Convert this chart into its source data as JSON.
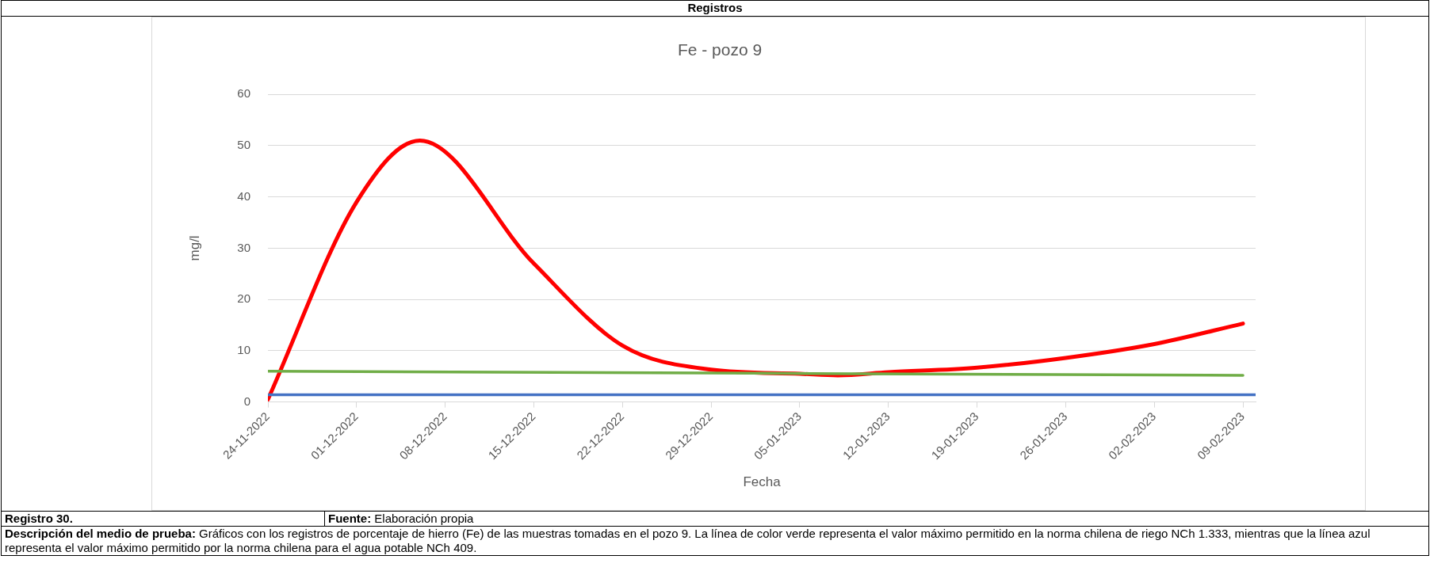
{
  "chart_data": {
    "type": "line",
    "title": "Fe - pozo 9",
    "xlabel": "Fecha",
    "ylabel": "mg/l",
    "series": [
      {
        "color": "#ff0000",
        "x": [
          "2022-11-24",
          "2022-12-01",
          "2022-12-06",
          "2022-12-15",
          "2022-12-22",
          "2022-12-29",
          "2023-01-05",
          "2023-01-08",
          "2023-01-12",
          "2023-01-19",
          "2023-01-26",
          "2023-02-02",
          "2023-02-09"
        ],
        "values": [
          0.5,
          39,
          51,
          27,
          11,
          6.3,
          5.5,
          5.2,
          5.8,
          6.7,
          8.6,
          11.3,
          15.3
        ]
      },
      {
        "color": "#70ad47",
        "x": [
          "2022-11-24",
          "2023-02-09"
        ],
        "values": [
          6,
          5.2
        ]
      },
      {
        "color": "#4472c4",
        "x": [
          "2022-11-24",
          "2023-02-10"
        ],
        "values": [
          1.4,
          1.4
        ]
      }
    ],
    "xlim": [
      "2022-11-24",
      "2023-02-10"
    ],
    "xticks": [
      {
        "value": "2022-11-24",
        "label": "24-11-2022"
      },
      {
        "value": "2022-12-01",
        "label": "01-12-2022"
      },
      {
        "value": "2022-12-08",
        "label": "08-12-2022"
      },
      {
        "value": "2022-12-15",
        "label": "15-12-2022"
      },
      {
        "value": "2022-12-22",
        "label": "22-12-2022"
      },
      {
        "value": "2022-12-29",
        "label": "29-12-2022"
      },
      {
        "value": "2023-01-05",
        "label": "05-01-2023"
      },
      {
        "value": "2023-01-12",
        "label": "12-01-2023"
      },
      {
        "value": "2023-01-19",
        "label": "19-01-2023"
      },
      {
        "value": "2023-01-26",
        "label": "26-01-2023"
      },
      {
        "value": "2023-02-02",
        "label": "02-02-2023"
      },
      {
        "value": "2023-02-09",
        "label": "09-02-2023"
      }
    ],
    "ylim": [
      0,
      60
    ],
    "yticks": [
      0,
      10,
      20,
      30,
      40,
      50,
      60
    ],
    "grid": "y",
    "legend": false,
    "marker": "none",
    "line_style": "solid",
    "annotations": [
      "Registros",
      "Registro 30.",
      "Fuente: Elaboración propia",
      "Descripción del medio de prueba: Gráficos con los registros de porcentaje de hierro (Fe) de las muestras tomadas en el pozo 9. La línea de color verde representa el valor máximo permitido en la norma chilena de riego NCh 1.333, mientras que la línea azul representa el valor máximo permitido por la norma chilena para el agua potable NCh 409."
    ]
  }
}
